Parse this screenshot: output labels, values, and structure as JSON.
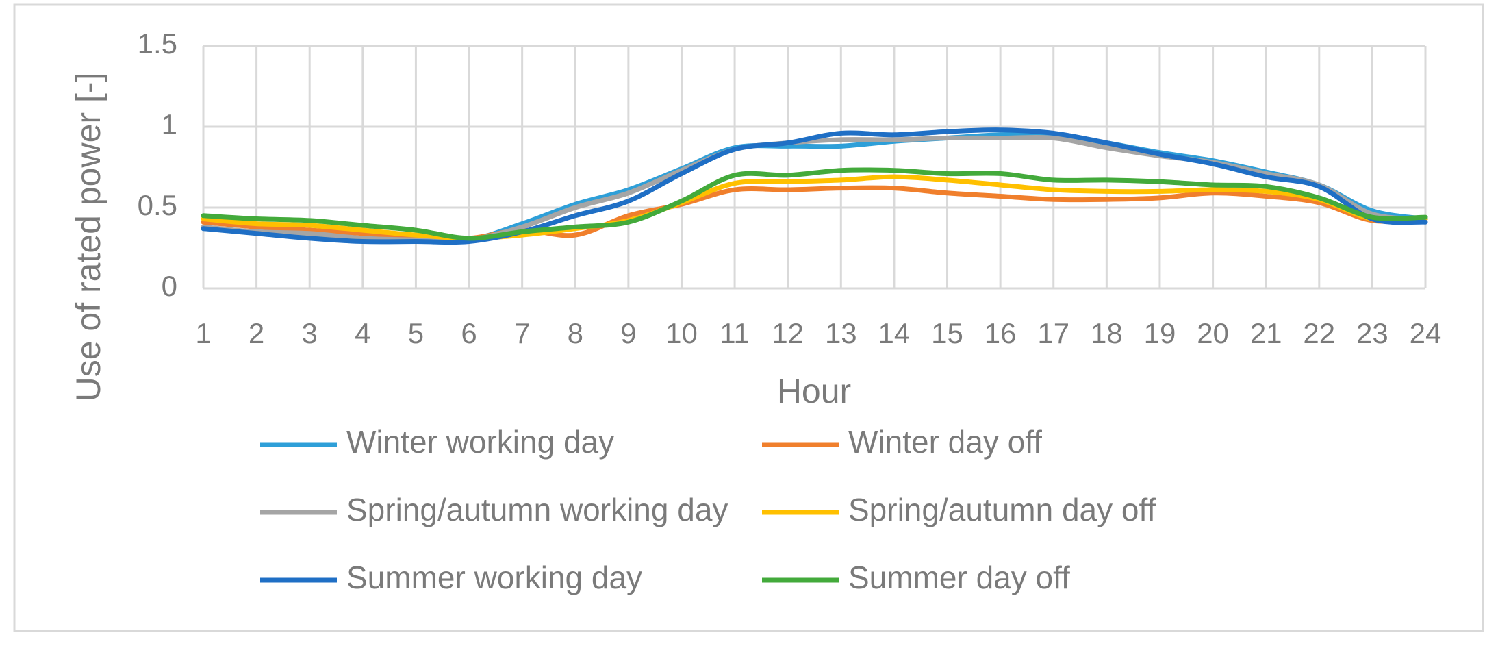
{
  "chart_data": {
    "type": "line",
    "x_label": "Hour",
    "y_label": "Use of rated power [-]",
    "x": [
      1,
      2,
      3,
      4,
      5,
      6,
      7,
      8,
      9,
      10,
      11,
      12,
      13,
      14,
      15,
      16,
      17,
      18,
      19,
      20,
      21,
      22,
      23,
      24
    ],
    "xlim": [
      1,
      24
    ],
    "xticks": [
      1,
      2,
      3,
      4,
      5,
      6,
      7,
      8,
      9,
      10,
      11,
      12,
      13,
      14,
      15,
      16,
      17,
      18,
      19,
      20,
      21,
      22,
      23,
      24
    ],
    "ylim": [
      0,
      1.5
    ],
    "yticks": [
      0,
      0.5,
      1,
      1.5
    ],
    "grid": true,
    "series": [
      {
        "name": "Winter working day",
        "color": "#2e9fd8",
        "values": [
          0.37,
          0.35,
          0.33,
          0.31,
          0.3,
          0.3,
          0.4,
          0.52,
          0.61,
          0.74,
          0.87,
          0.88,
          0.88,
          0.91,
          0.93,
          0.95,
          0.95,
          0.9,
          0.84,
          0.79,
          0.72,
          0.64,
          0.48,
          0.43
        ]
      },
      {
        "name": "Winter day off",
        "color": "#f07f2c",
        "values": [
          0.41,
          0.38,
          0.36,
          0.34,
          0.32,
          0.31,
          0.36,
          0.33,
          0.45,
          0.52,
          0.61,
          0.61,
          0.62,
          0.62,
          0.59,
          0.57,
          0.55,
          0.55,
          0.56,
          0.59,
          0.57,
          0.53,
          0.42,
          0.43
        ]
      },
      {
        "name": "Spring/autumn working day",
        "color": "#a5a5a5",
        "values": [
          0.38,
          0.35,
          0.34,
          0.31,
          0.3,
          0.3,
          0.38,
          0.5,
          0.59,
          0.73,
          0.86,
          0.9,
          0.92,
          0.92,
          0.93,
          0.93,
          0.93,
          0.87,
          0.82,
          0.78,
          0.71,
          0.64,
          0.46,
          0.43
        ]
      },
      {
        "name": "Spring/autumn day off",
        "color": "#ffc000",
        "values": [
          0.43,
          0.4,
          0.39,
          0.36,
          0.33,
          0.31,
          0.33,
          0.37,
          0.42,
          0.53,
          0.65,
          0.66,
          0.67,
          0.69,
          0.67,
          0.64,
          0.61,
          0.6,
          0.6,
          0.61,
          0.6,
          0.55,
          0.43,
          0.43
        ]
      },
      {
        "name": "Summer working day",
        "color": "#1f6fc5",
        "values": [
          0.37,
          0.34,
          0.31,
          0.29,
          0.29,
          0.29,
          0.35,
          0.45,
          0.54,
          0.71,
          0.86,
          0.9,
          0.96,
          0.95,
          0.97,
          0.98,
          0.96,
          0.9,
          0.83,
          0.77,
          0.69,
          0.63,
          0.43,
          0.41
        ]
      },
      {
        "name": "Summer day off",
        "color": "#43aa3b",
        "values": [
          0.45,
          0.43,
          0.42,
          0.39,
          0.36,
          0.31,
          0.35,
          0.38,
          0.41,
          0.54,
          0.7,
          0.7,
          0.73,
          0.73,
          0.71,
          0.71,
          0.67,
          0.67,
          0.66,
          0.64,
          0.63,
          0.56,
          0.44,
          0.44
        ]
      }
    ]
  }
}
